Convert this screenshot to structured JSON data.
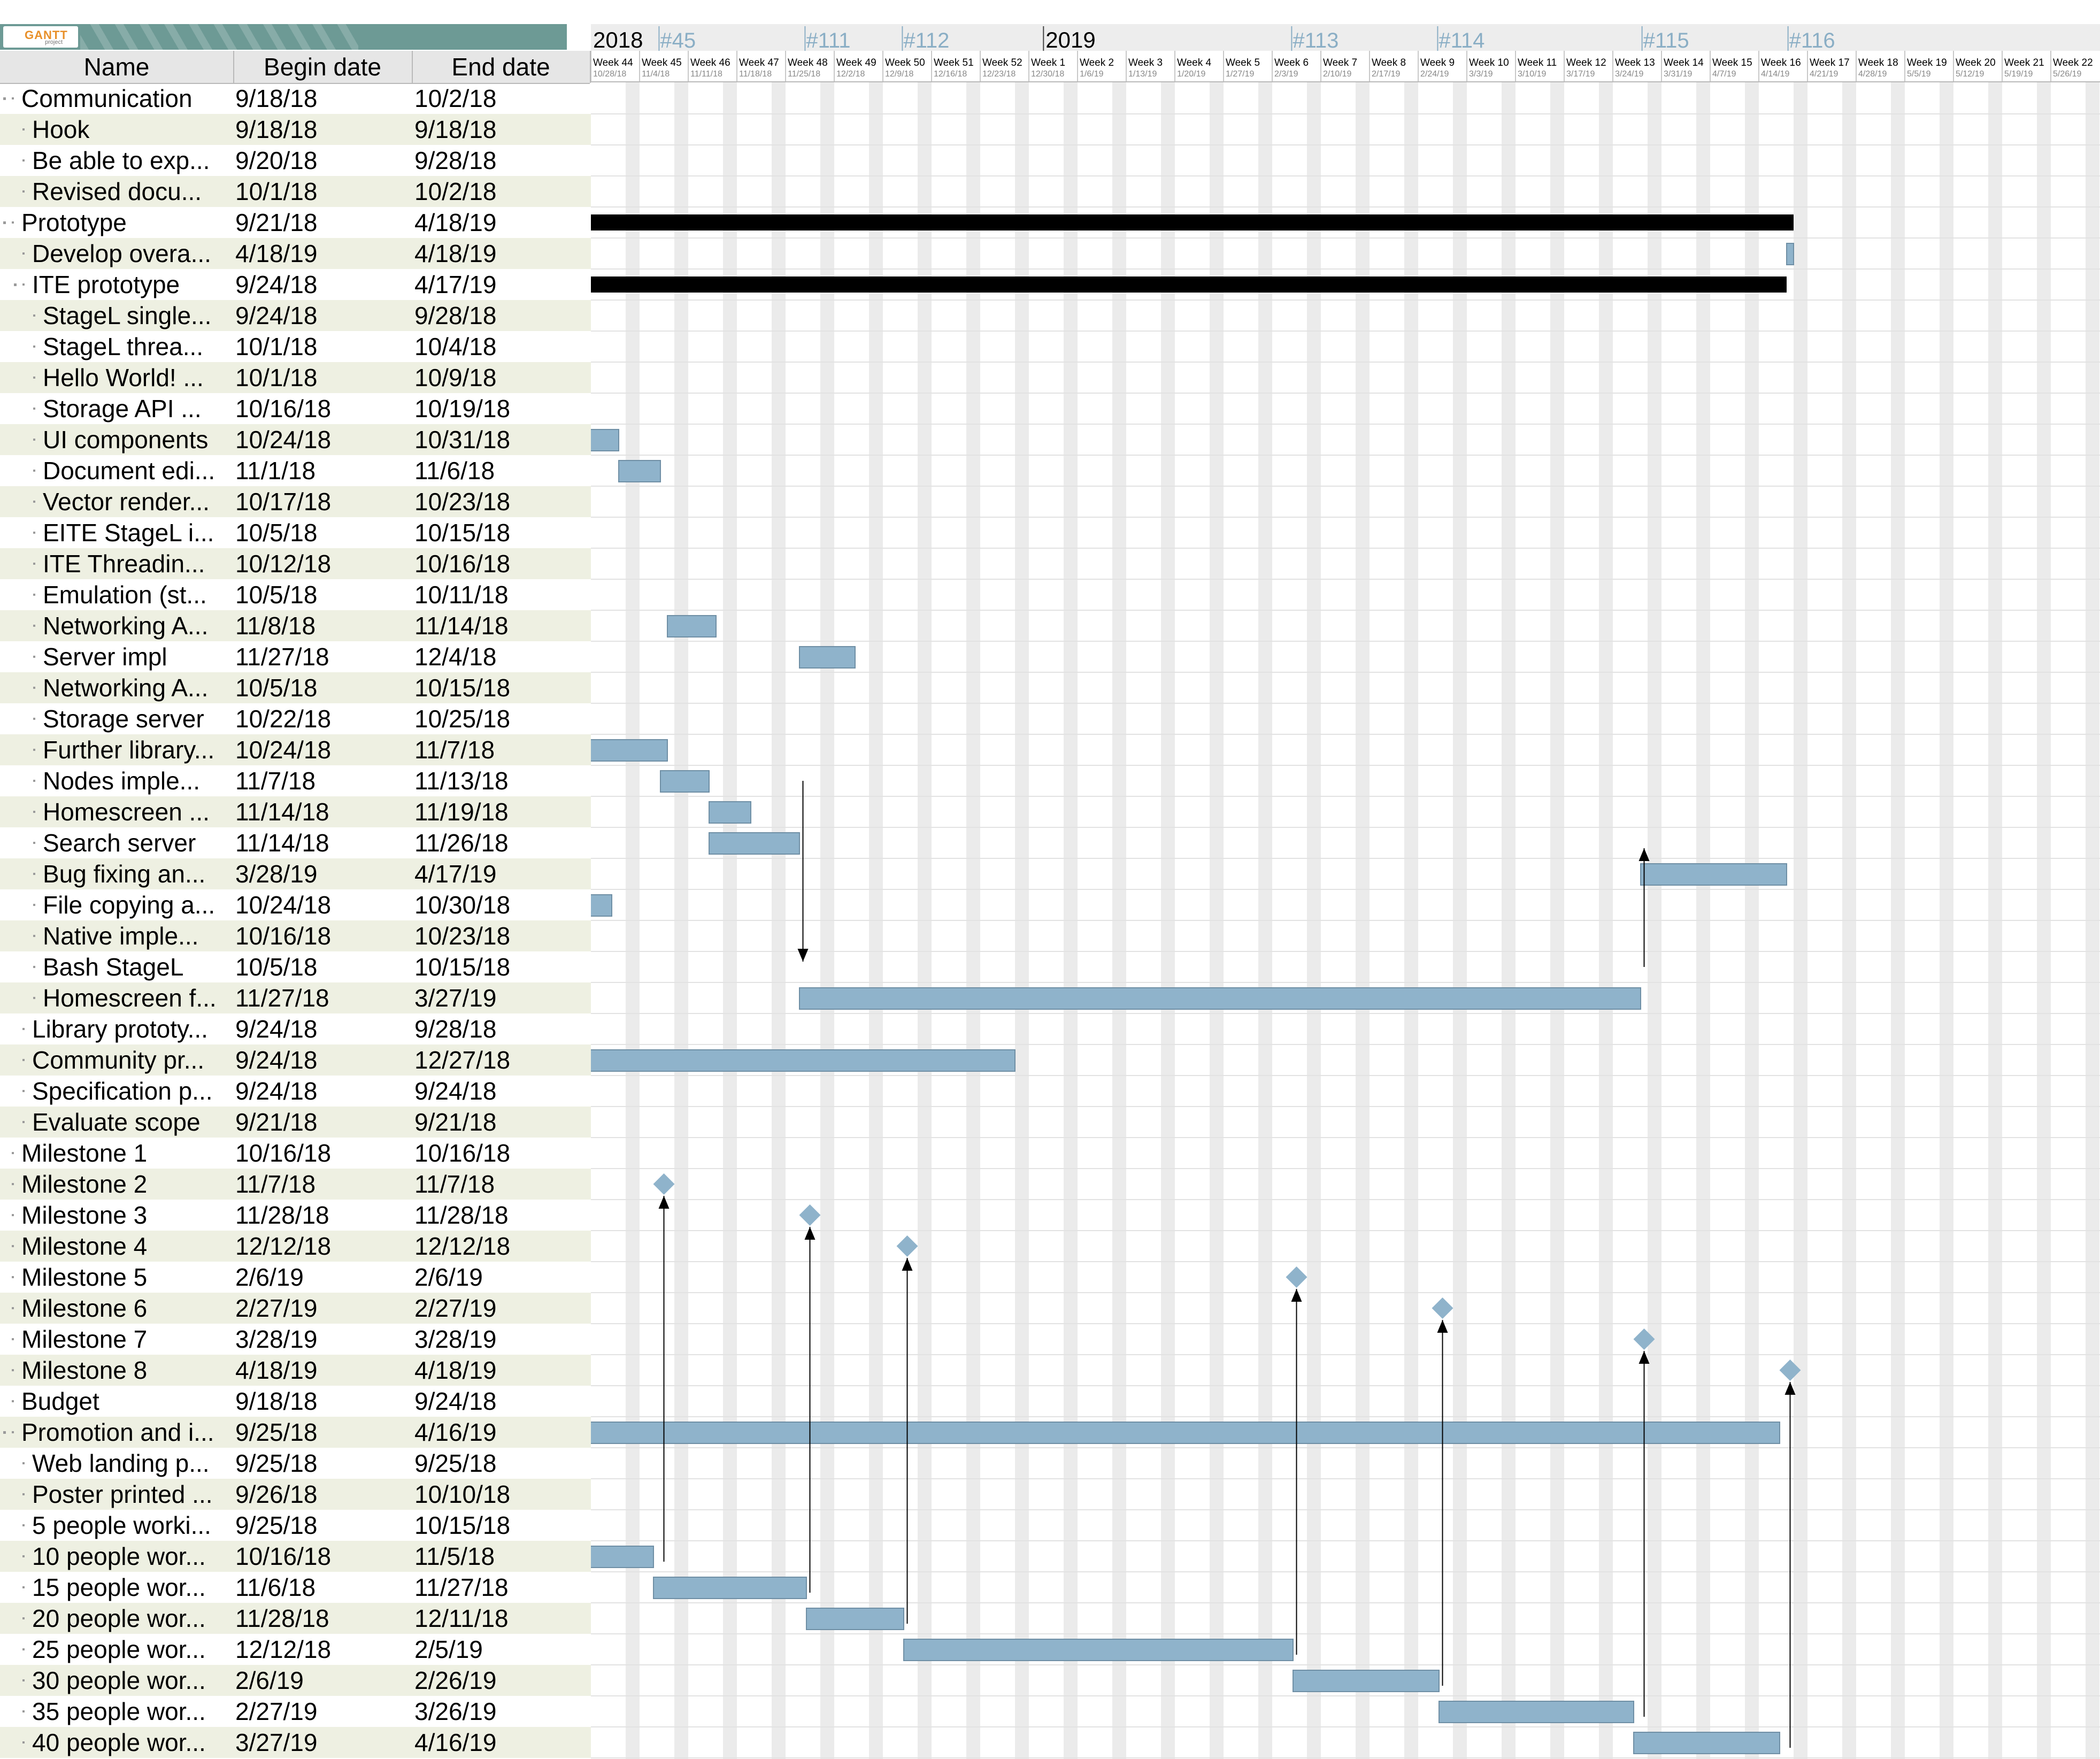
{
  "logo": {
    "text": "GANTT",
    "sub": "project"
  },
  "table": {
    "columns": {
      "name": "Name",
      "begin": "Begin date",
      "end": "End date"
    },
    "rows": [
      {
        "name": "Communication",
        "begin": "9/18/18",
        "end": "10/2/18",
        "level": 0,
        "group": true
      },
      {
        "name": "Hook",
        "begin": "9/18/18",
        "end": "9/18/18",
        "level": 1
      },
      {
        "name": "Be able to exp...",
        "begin": "9/20/18",
        "end": "9/28/18",
        "level": 1
      },
      {
        "name": "Revised docu...",
        "begin": "10/1/18",
        "end": "10/2/18",
        "level": 1
      },
      {
        "name": "Prototype",
        "begin": "9/21/18",
        "end": "4/18/19",
        "level": 0,
        "group": true
      },
      {
        "name": "Develop overa...",
        "begin": "4/18/19",
        "end": "4/18/19",
        "level": 1
      },
      {
        "name": "ITE prototype",
        "begin": "9/24/18",
        "end": "4/17/19",
        "level": 1,
        "group": true
      },
      {
        "name": "StageL single...",
        "begin": "9/24/18",
        "end": "9/28/18",
        "level": 2
      },
      {
        "name": "StageL threa...",
        "begin": "10/1/18",
        "end": "10/4/18",
        "level": 2
      },
      {
        "name": "Hello World! ...",
        "begin": "10/1/18",
        "end": "10/9/18",
        "level": 2
      },
      {
        "name": "Storage API ...",
        "begin": "10/16/18",
        "end": "10/19/18",
        "level": 2
      },
      {
        "name": "UI components",
        "begin": "10/24/18",
        "end": "10/31/18",
        "level": 2
      },
      {
        "name": "Document edi...",
        "begin": "11/1/18",
        "end": "11/6/18",
        "level": 2
      },
      {
        "name": "Vector render...",
        "begin": "10/17/18",
        "end": "10/23/18",
        "level": 2
      },
      {
        "name": "EITE StageL i...",
        "begin": "10/5/18",
        "end": "10/15/18",
        "level": 2
      },
      {
        "name": "ITE Threadin...",
        "begin": "10/12/18",
        "end": "10/16/18",
        "level": 2
      },
      {
        "name": "Emulation (st...",
        "begin": "10/5/18",
        "end": "10/11/18",
        "level": 2
      },
      {
        "name": "Networking A...",
        "begin": "11/8/18",
        "end": "11/14/18",
        "level": 2
      },
      {
        "name": "Server impl",
        "begin": "11/27/18",
        "end": "12/4/18",
        "level": 2
      },
      {
        "name": "Networking A...",
        "begin": "10/5/18",
        "end": "10/15/18",
        "level": 2
      },
      {
        "name": "Storage server",
        "begin": "10/22/18",
        "end": "10/25/18",
        "level": 2
      },
      {
        "name": "Further library...",
        "begin": "10/24/18",
        "end": "11/7/18",
        "level": 2
      },
      {
        "name": "Nodes imple...",
        "begin": "11/7/18",
        "end": "11/13/18",
        "level": 2
      },
      {
        "name": "Homescreen ...",
        "begin": "11/14/18",
        "end": "11/19/18",
        "level": 2
      },
      {
        "name": "Search server",
        "begin": "11/14/18",
        "end": "11/26/18",
        "level": 2
      },
      {
        "name": "Bug fixing an...",
        "begin": "3/28/19",
        "end": "4/17/19",
        "level": 2
      },
      {
        "name": "File copying a...",
        "begin": "10/24/18",
        "end": "10/30/18",
        "level": 2
      },
      {
        "name": "Native imple...",
        "begin": "10/16/18",
        "end": "10/23/18",
        "level": 2
      },
      {
        "name": "Bash StageL",
        "begin": "10/5/18",
        "end": "10/15/18",
        "level": 2
      },
      {
        "name": "Homescreen f...",
        "begin": "11/27/18",
        "end": "3/27/19",
        "level": 2
      },
      {
        "name": "Library prototy...",
        "begin": "9/24/18",
        "end": "9/28/18",
        "level": 1
      },
      {
        "name": "Community pr...",
        "begin": "9/24/18",
        "end": "12/27/18",
        "level": 1
      },
      {
        "name": "Specification p...",
        "begin": "9/24/18",
        "end": "9/24/18",
        "level": 1
      },
      {
        "name": "Evaluate scope",
        "begin": "9/21/18",
        "end": "9/21/18",
        "level": 1
      },
      {
        "name": "Milestone 1",
        "begin": "10/16/18",
        "end": "10/16/18",
        "level": 0
      },
      {
        "name": "Milestone 2",
        "begin": "11/7/18",
        "end": "11/7/18",
        "level": 0
      },
      {
        "name": "Milestone 3",
        "begin": "11/28/18",
        "end": "11/28/18",
        "level": 0
      },
      {
        "name": "Milestone 4",
        "begin": "12/12/18",
        "end": "12/12/18",
        "level": 0
      },
      {
        "name": "Milestone 5",
        "begin": "2/6/19",
        "end": "2/6/19",
        "level": 0
      },
      {
        "name": "Milestone 6",
        "begin": "2/27/19",
        "end": "2/27/19",
        "level": 0
      },
      {
        "name": "Milestone 7",
        "begin": "3/28/19",
        "end": "3/28/19",
        "level": 0
      },
      {
        "name": "Milestone 8",
        "begin": "4/18/19",
        "end": "4/18/19",
        "level": 0
      },
      {
        "name": "Budget",
        "begin": "9/18/18",
        "end": "9/24/18",
        "level": 0
      },
      {
        "name": "Promotion and i...",
        "begin": "9/25/18",
        "end": "4/16/19",
        "level": 0,
        "group": true
      },
      {
        "name": "Web landing p...",
        "begin": "9/25/18",
        "end": "9/25/18",
        "level": 1
      },
      {
        "name": "Poster printed ...",
        "begin": "9/26/18",
        "end": "10/10/18",
        "level": 1
      },
      {
        "name": "5 people worki...",
        "begin": "9/25/18",
        "end": "10/15/18",
        "level": 1
      },
      {
        "name": "10 people wor...",
        "begin": "10/16/18",
        "end": "11/5/18",
        "level": 1
      },
      {
        "name": "15 people wor...",
        "begin": "11/6/18",
        "end": "11/27/18",
        "level": 1
      },
      {
        "name": "20 people wor...",
        "begin": "11/28/18",
        "end": "12/11/18",
        "level": 1
      },
      {
        "name": "25 people wor...",
        "begin": "12/12/18",
        "end": "2/5/19",
        "level": 1
      },
      {
        "name": "30 people wor...",
        "begin": "2/6/19",
        "end": "2/26/19",
        "level": 1
      },
      {
        "name": "35 people wor...",
        "begin": "2/27/19",
        "end": "3/26/19",
        "level": 1
      },
      {
        "name": "40 people wor...",
        "begin": "3/27/19",
        "end": "4/16/19",
        "level": 1
      }
    ]
  },
  "timeline": {
    "years": [
      {
        "label": "2018",
        "week": 0
      },
      {
        "label": "2019",
        "week": 9.3
      }
    ],
    "iterations": [
      {
        "label": "#45",
        "week": 1.4
      },
      {
        "label": "#111",
        "week": 4.4
      },
      {
        "label": "#112",
        "week": 6.4
      },
      {
        "label": "#113",
        "week": 14.4
      },
      {
        "label": "#114",
        "week": 17.4
      },
      {
        "label": "#115",
        "week": 21.6
      },
      {
        "label": "#116",
        "week": 24.6
      }
    ],
    "weeks": [
      {
        "label": "Week 44",
        "date": "10/28/18"
      },
      {
        "label": "Week 45",
        "date": "11/4/18"
      },
      {
        "label": "Week 46",
        "date": "11/11/18"
      },
      {
        "label": "Week 47",
        "date": "11/18/18"
      },
      {
        "label": "Week 48",
        "date": "11/25/18"
      },
      {
        "label": "Week 49",
        "date": "12/2/18"
      },
      {
        "label": "Week 50",
        "date": "12/9/18"
      },
      {
        "label": "Week 51",
        "date": "12/16/18"
      },
      {
        "label": "Week 52",
        "date": "12/23/18"
      },
      {
        "label": "Week 1",
        "date": "12/30/18"
      },
      {
        "label": "Week 2",
        "date": "1/6/19"
      },
      {
        "label": "Week 3",
        "date": "1/13/19"
      },
      {
        "label": "Week 4",
        "date": "1/20/19"
      },
      {
        "label": "Week 5",
        "date": "1/27/19"
      },
      {
        "label": "Week 6",
        "date": "2/3/19"
      },
      {
        "label": "Week 7",
        "date": "2/10/19"
      },
      {
        "label": "Week 8",
        "date": "2/17/19"
      },
      {
        "label": "Week 9",
        "date": "2/24/19"
      },
      {
        "label": "Week 10",
        "date": "3/3/19"
      },
      {
        "label": "Week 11",
        "date": "3/10/19"
      },
      {
        "label": "Week 12",
        "date": "3/17/19"
      },
      {
        "label": "Week 13",
        "date": "3/24/19"
      },
      {
        "label": "Week 14",
        "date": "3/31/19"
      },
      {
        "label": "Week 15",
        "date": "4/7/19"
      },
      {
        "label": "Week 16",
        "date": "4/14/19"
      },
      {
        "label": "Week 17",
        "date": "4/21/19"
      },
      {
        "label": "Week 18",
        "date": "4/28/19"
      },
      {
        "label": "Week 19",
        "date": "5/5/19"
      },
      {
        "label": "Week 20",
        "date": "5/12/19"
      },
      {
        "label": "Week 21",
        "date": "5/19/19"
      },
      {
        "label": "Week 22",
        "date": "5/26/19"
      }
    ]
  },
  "colors": {
    "task": "#8fb3cb",
    "summary": "#000000",
    "milestone": "#8fb3cb",
    "weekend": "#ebebeb",
    "header": "#e6e6e6",
    "alt_row": "#eef0e2"
  }
}
